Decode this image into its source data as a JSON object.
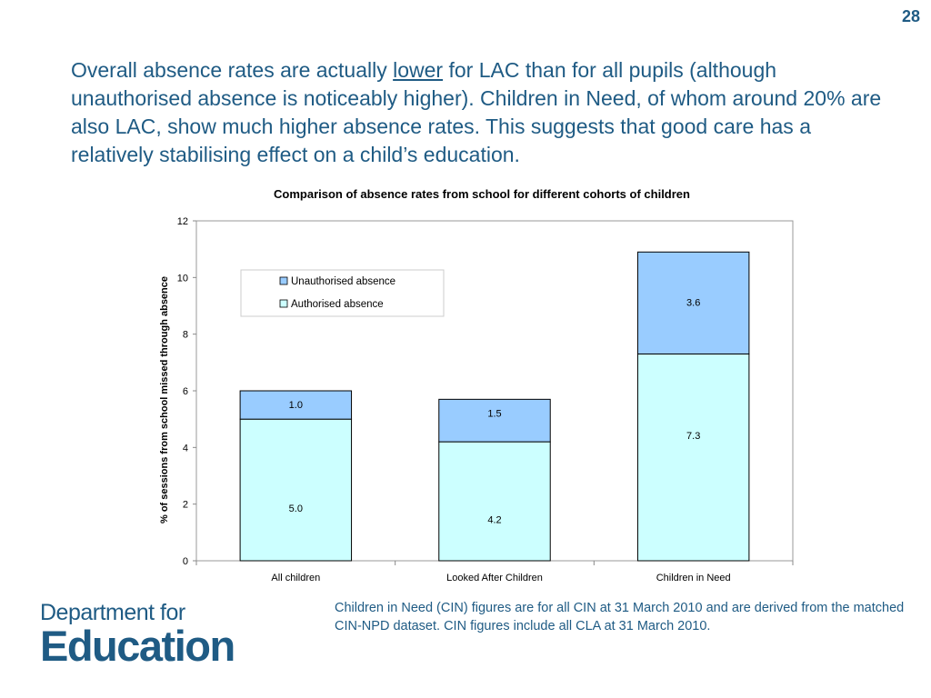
{
  "slide": {
    "page_number": "28",
    "heading_before": "Overall absence rates are actually ",
    "heading_emphasis": "lower",
    "heading_after": " for LAC than for all pupils (although unauthorised absence is noticeably higher). Children in Need, of whom around 20% are also LAC, show much higher absence rates. This suggests that good care has a relatively stabilising effect on a child’s education.",
    "footnote": "Children in Need (CIN) figures are for all CIN at 31 March 2010 and are derived from the matched CIN-NPD dataset. CIN figures include all CLA at 31 March 2010.",
    "logo_line1": "Department for",
    "logo_line2": "Education"
  },
  "chart_data": {
    "type": "bar",
    "stacked": true,
    "title": "Comparison of absence rates from school for different cohorts of children",
    "xlabel": "",
    "ylabel": "% of sessions from school missed through absence",
    "ylim": [
      0,
      12
    ],
    "yticks": [
      0,
      2,
      4,
      6,
      8,
      10,
      12
    ],
    "categories": [
      "All children",
      "Looked After Children",
      "Children in Need"
    ],
    "series": [
      {
        "name": "Authorised absence",
        "values": [
          5.0,
          4.2,
          7.3
        ],
        "labels": [
          "5.0",
          "4.2",
          "7.3"
        ],
        "color": "#ccffff"
      },
      {
        "name": "Unauthorised absence",
        "values": [
          1.0,
          1.5,
          3.6
        ],
        "labels": [
          "1.0",
          "1.5",
          "3.6"
        ],
        "color": "#99ccff"
      }
    ],
    "legend": {
      "position": "top-left",
      "order": [
        "Unauthorised absence",
        "Authorised absence"
      ]
    },
    "grid": false
  }
}
